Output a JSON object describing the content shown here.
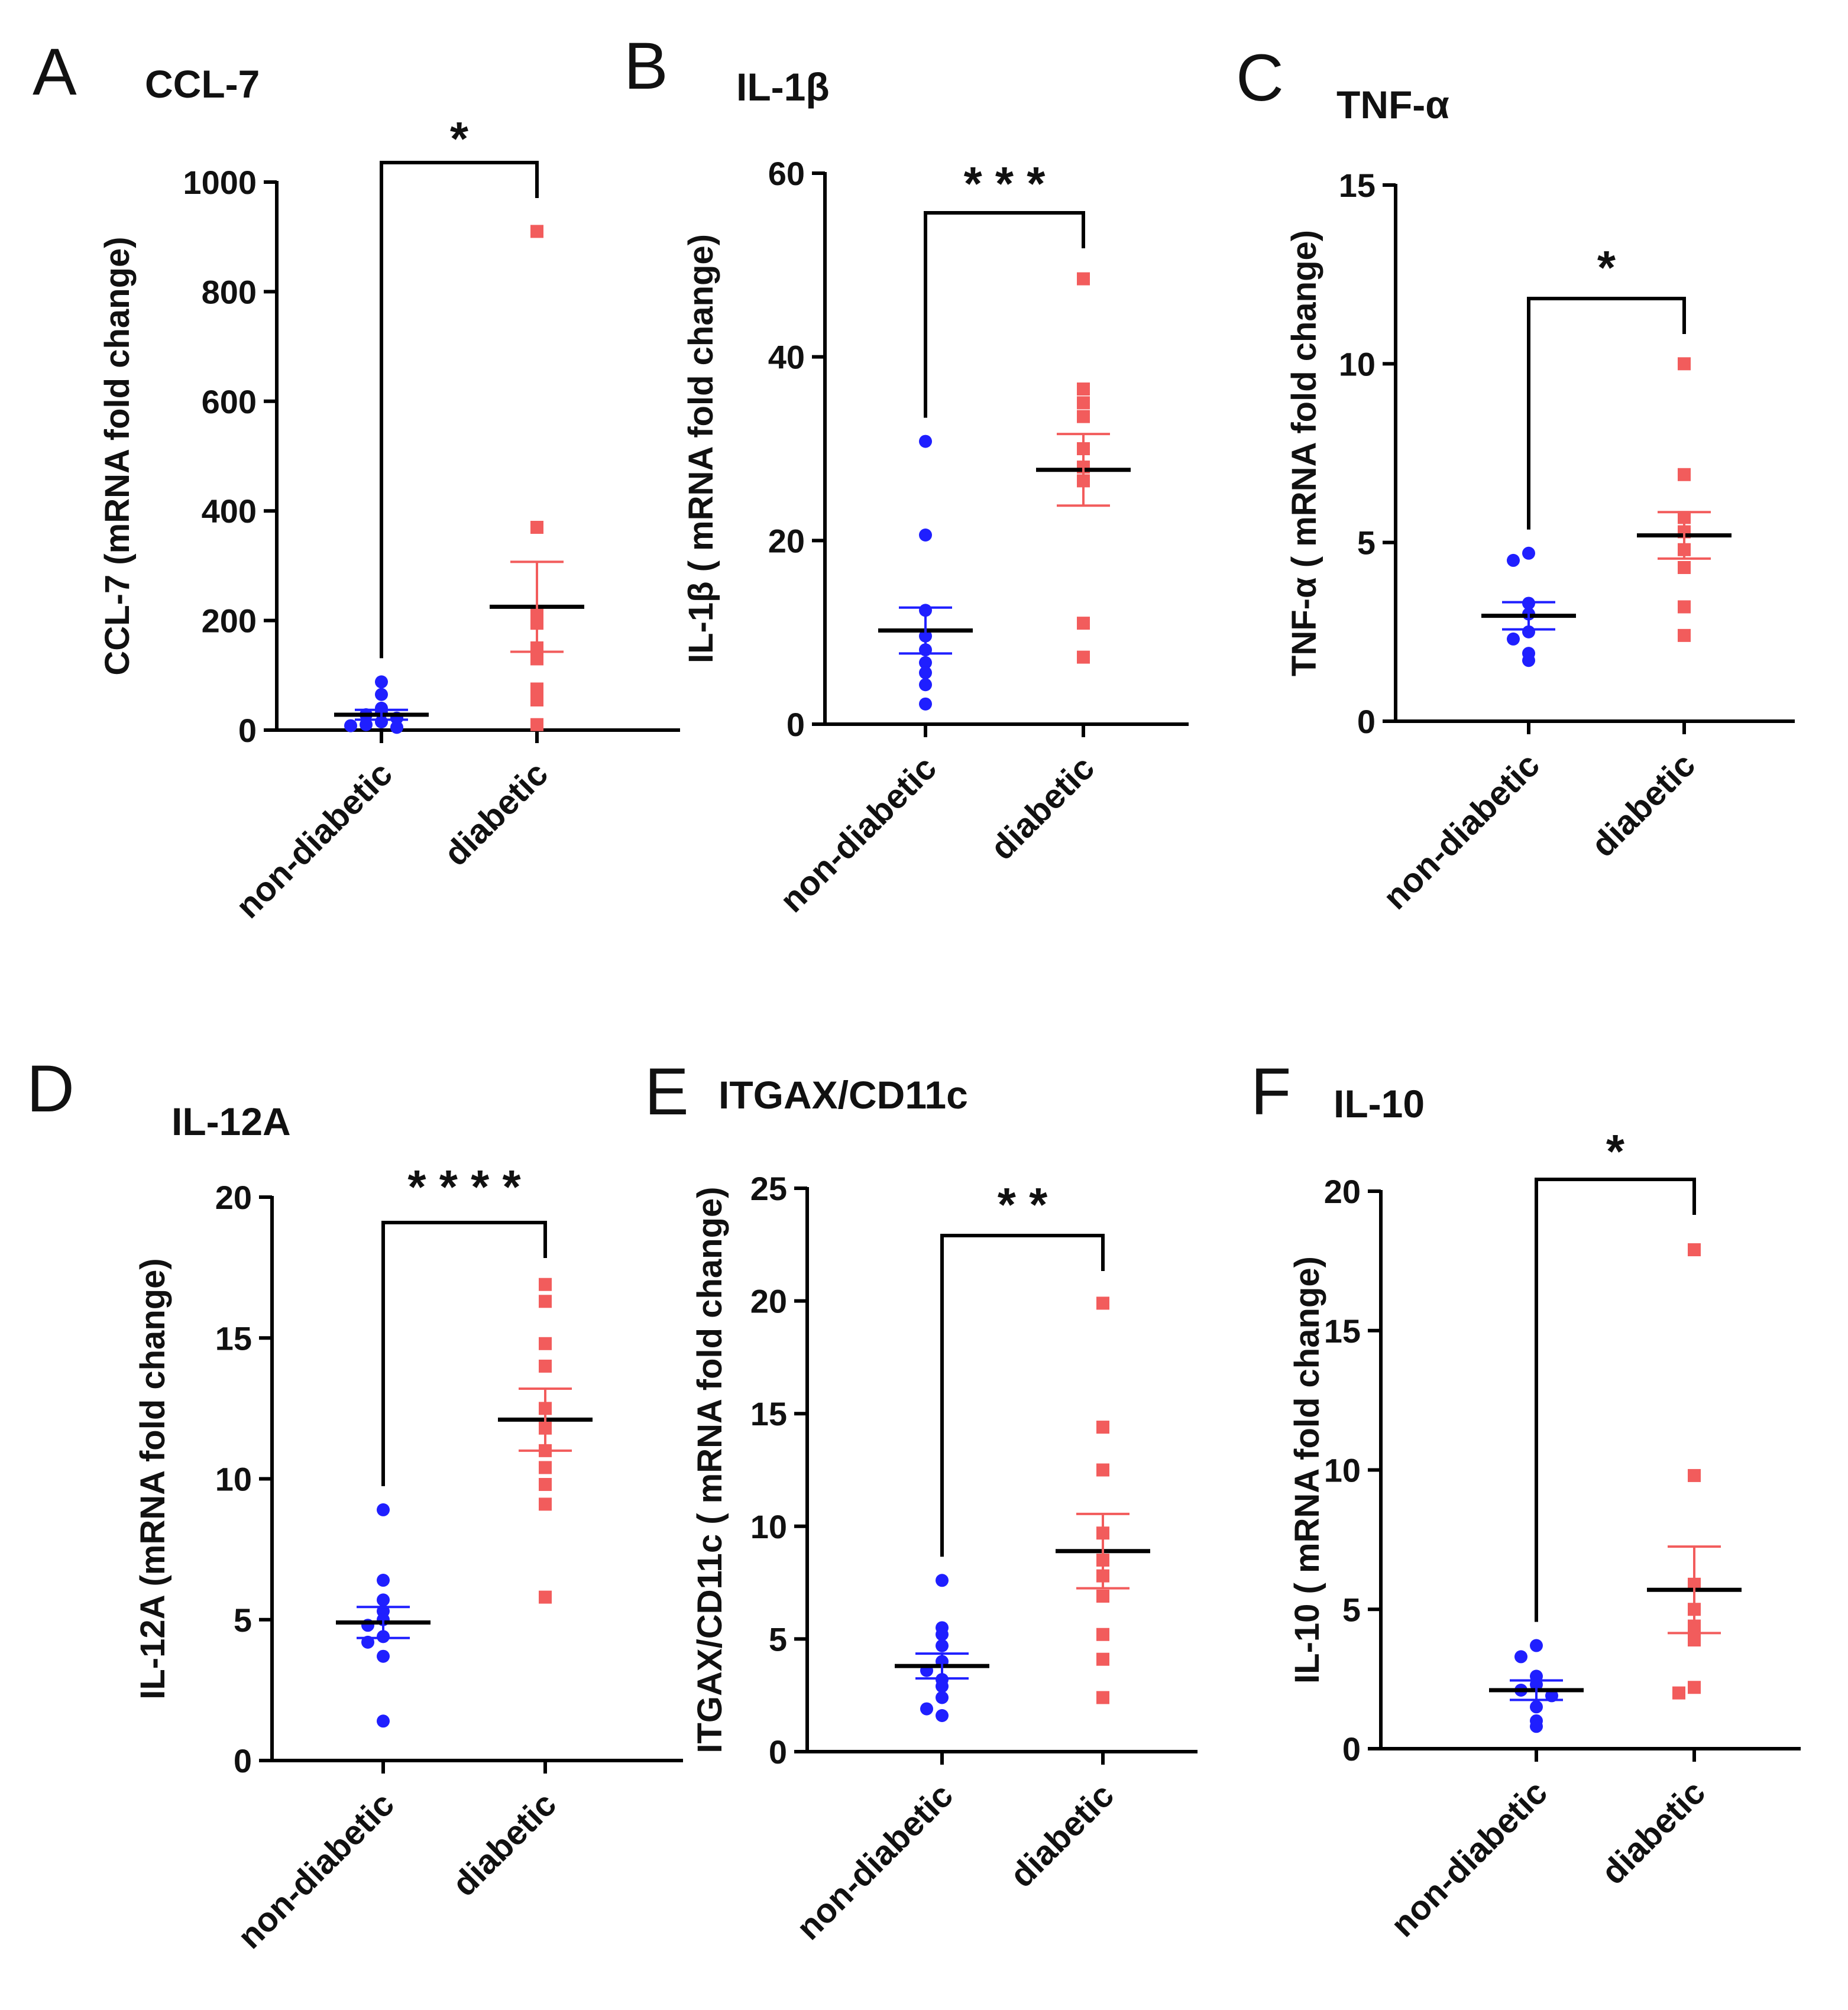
{
  "figure": {
    "panels": [
      {
        "letter": "A",
        "title": "CCL-7",
        "significance": "*"
      },
      {
        "letter": "B",
        "title": "IL-1β",
        "significance": "***"
      },
      {
        "letter": "C",
        "title": "TNF-α",
        "significance": "*"
      },
      {
        "letter": "D",
        "title": "IL-12A",
        "significance": "****"
      },
      {
        "letter": "E",
        "title": "ITGAX/CD11c",
        "significance": "**"
      },
      {
        "letter": "F",
        "title": "IL-10",
        "significance": "*"
      }
    ]
  },
  "chart_data": [
    {
      "type": "scatter",
      "title": "CCL-7",
      "ylabel": "CCL-7 (mRNA fold change)",
      "categories": [
        "non-diabetic",
        "diabetic"
      ],
      "ylim": [
        0,
        1000
      ],
      "yticks": [
        0,
        200,
        400,
        600,
        800,
        1000
      ],
      "significance": "*",
      "series": [
        {
          "name": "non-diabetic",
          "color": "#1f1fff",
          "marker": "circle",
          "values": [
            88,
            65,
            40,
            32,
            28,
            22,
            15,
            10,
            5,
            8
          ],
          "mean": 28,
          "sem": 9
        },
        {
          "name": "diabetic",
          "color": "#f25c5c",
          "marker": "square",
          "values": [
            910,
            370,
            215,
            195,
            150,
            130,
            75,
            55,
            10
          ],
          "mean": 225,
          "sem": 82
        }
      ]
    },
    {
      "type": "scatter",
      "title": "IL-1β",
      "ylabel": "IL-1β ( mRNA fold change)",
      "categories": [
        "non-diabetic",
        "diabetic"
      ],
      "ylim": [
        0,
        60
      ],
      "yticks": [
        0,
        20,
        40,
        60
      ],
      "significance": "***",
      "series": [
        {
          "name": "non-diabetic",
          "color": "#1f1fff",
          "marker": "circle",
          "values": [
            30.8,
            20.6,
            12.4,
            9.6,
            8.1,
            6.7,
            5.6,
            4.3,
            2.2
          ],
          "mean": 10.2,
          "sem": 2.5
        },
        {
          "name": "diabetic",
          "color": "#f25c5c",
          "marker": "square",
          "values": [
            48.5,
            36.5,
            35,
            33.5,
            30,
            28,
            26.5,
            11,
            7.3
          ],
          "mean": 27.7,
          "sem": 3.9
        }
      ]
    },
    {
      "type": "scatter",
      "title": "TNF-α",
      "ylabel": "TNF-α ( mRNA fold change)",
      "categories": [
        "non-diabetic",
        "diabetic"
      ],
      "ylim": [
        0,
        15
      ],
      "yticks": [
        0,
        5,
        10,
        15
      ],
      "significance": "*",
      "series": [
        {
          "name": "non-diabetic",
          "color": "#1f1fff",
          "marker": "circle",
          "values": [
            4.7,
            4.5,
            3.3,
            3.0,
            2.5,
            2.3,
            1.9,
            1.7
          ],
          "mean": 2.95,
          "sem": 0.38
        },
        {
          "name": "diabetic",
          "color": "#f25c5c",
          "marker": "square",
          "values": [
            10.0,
            6.9,
            5.7,
            5.3,
            4.8,
            4.3,
            3.2,
            2.4
          ],
          "mean": 5.2,
          "sem": 0.65
        }
      ]
    },
    {
      "type": "scatter",
      "title": "IL-12A",
      "ylabel": "IL-12A (mRNA fold change)",
      "categories": [
        "non-diabetic",
        "diabetic"
      ],
      "ylim": [
        0,
        20
      ],
      "yticks": [
        0,
        5,
        10,
        15,
        20
      ],
      "significance": "****",
      "series": [
        {
          "name": "non-diabetic",
          "color": "#1f1fff",
          "marker": "circle",
          "values": [
            8.9,
            6.4,
            5.7,
            5.3,
            5.0,
            4.8,
            4.4,
            4.2,
            3.7,
            1.4
          ],
          "mean": 4.9,
          "sem": 0.55
        },
        {
          "name": "diabetic",
          "color": "#f25c5c",
          "marker": "square",
          "values": [
            16.9,
            16.3,
            14.8,
            14.0,
            12.5,
            11.8,
            11.0,
            10.4,
            9.8,
            9.1,
            5.8
          ],
          "mean": 12.1,
          "sem": 1.1
        }
      ]
    },
    {
      "type": "scatter",
      "title": "ITGAX/CD11c",
      "ylabel": "ITGAX/CD11c ( mRNA fold change)",
      "categories": [
        "non-diabetic",
        "diabetic"
      ],
      "ylim": [
        0,
        25
      ],
      "yticks": [
        0,
        5,
        10,
        15,
        20,
        25
      ],
      "significance": "**",
      "series": [
        {
          "name": "non-diabetic",
          "color": "#1f1fff",
          "marker": "circle",
          "values": [
            7.6,
            5.5,
            5.2,
            4.7,
            4.0,
            3.6,
            3.2,
            2.9,
            2.4,
            1.9,
            1.6
          ],
          "mean": 3.8,
          "sem": 0.55
        },
        {
          "name": "diabetic",
          "color": "#f25c5c",
          "marker": "square",
          "values": [
            19.9,
            14.4,
            12.5,
            9.7,
            8.5,
            7.8,
            6.9,
            5.2,
            4.1,
            2.4
          ],
          "mean": 8.9,
          "sem": 1.65
        }
      ]
    },
    {
      "type": "scatter",
      "title": "IL-10",
      "ylabel": "IL-10 ( mRNA fold change)",
      "categories": [
        "non-diabetic",
        "diabetic"
      ],
      "ylim": [
        0,
        20
      ],
      "yticks": [
        0,
        5,
        10,
        15,
        20
      ],
      "significance": "*",
      "series": [
        {
          "name": "non-diabetic",
          "color": "#1f1fff",
          "marker": "circle",
          "values": [
            3.7,
            3.3,
            2.6,
            2.3,
            2.1,
            1.9,
            1.5,
            1.0,
            0.8
          ],
          "mean": 2.1,
          "sem": 0.35
        },
        {
          "name": "diabetic",
          "color": "#f25c5c",
          "marker": "square",
          "values": [
            17.9,
            9.8,
            5.9,
            5.0,
            4.4,
            3.9,
            2.2,
            2.0
          ],
          "mean": 5.7,
          "sem": 1.55
        }
      ]
    }
  ]
}
